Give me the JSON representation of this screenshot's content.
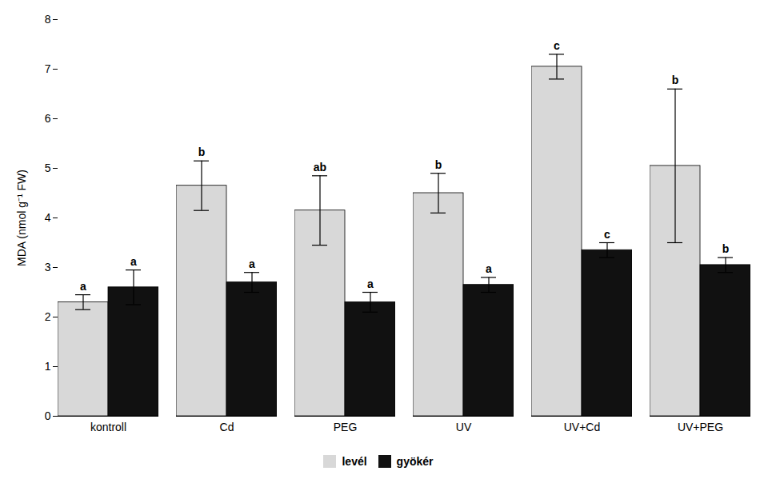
{
  "chart_data": {
    "type": "bar",
    "categories": [
      "kontroll",
      "Cd",
      "PEG",
      "UV",
      "UV+Cd",
      "UV+PEG"
    ],
    "series": [
      {
        "name": "levél",
        "color": "#d8d8d8",
        "values": [
          2.3,
          4.65,
          4.15,
          4.5,
          7.05,
          5.05
        ],
        "errors": [
          0.15,
          0.5,
          0.7,
          0.4,
          0.25,
          1.55
        ],
        "annotations": [
          "a",
          "b",
          "ab",
          "b",
          "c",
          "b"
        ]
      },
      {
        "name": "gyökér",
        "color": "#111111",
        "values": [
          2.6,
          2.7,
          2.3,
          2.65,
          3.35,
          3.05
        ],
        "errors": [
          0.35,
          0.2,
          0.2,
          0.15,
          0.15,
          0.15
        ],
        "annotations": [
          "a",
          "a",
          "a",
          "a",
          "c",
          "b"
        ]
      }
    ],
    "ylabel": "MDA (nmol g⁻¹ FW)",
    "ylim": [
      0,
      8
    ],
    "yticks": [
      0,
      1,
      2,
      3,
      4,
      5,
      6,
      7,
      8
    ],
    "legend": "bottom",
    "grid": false
  }
}
